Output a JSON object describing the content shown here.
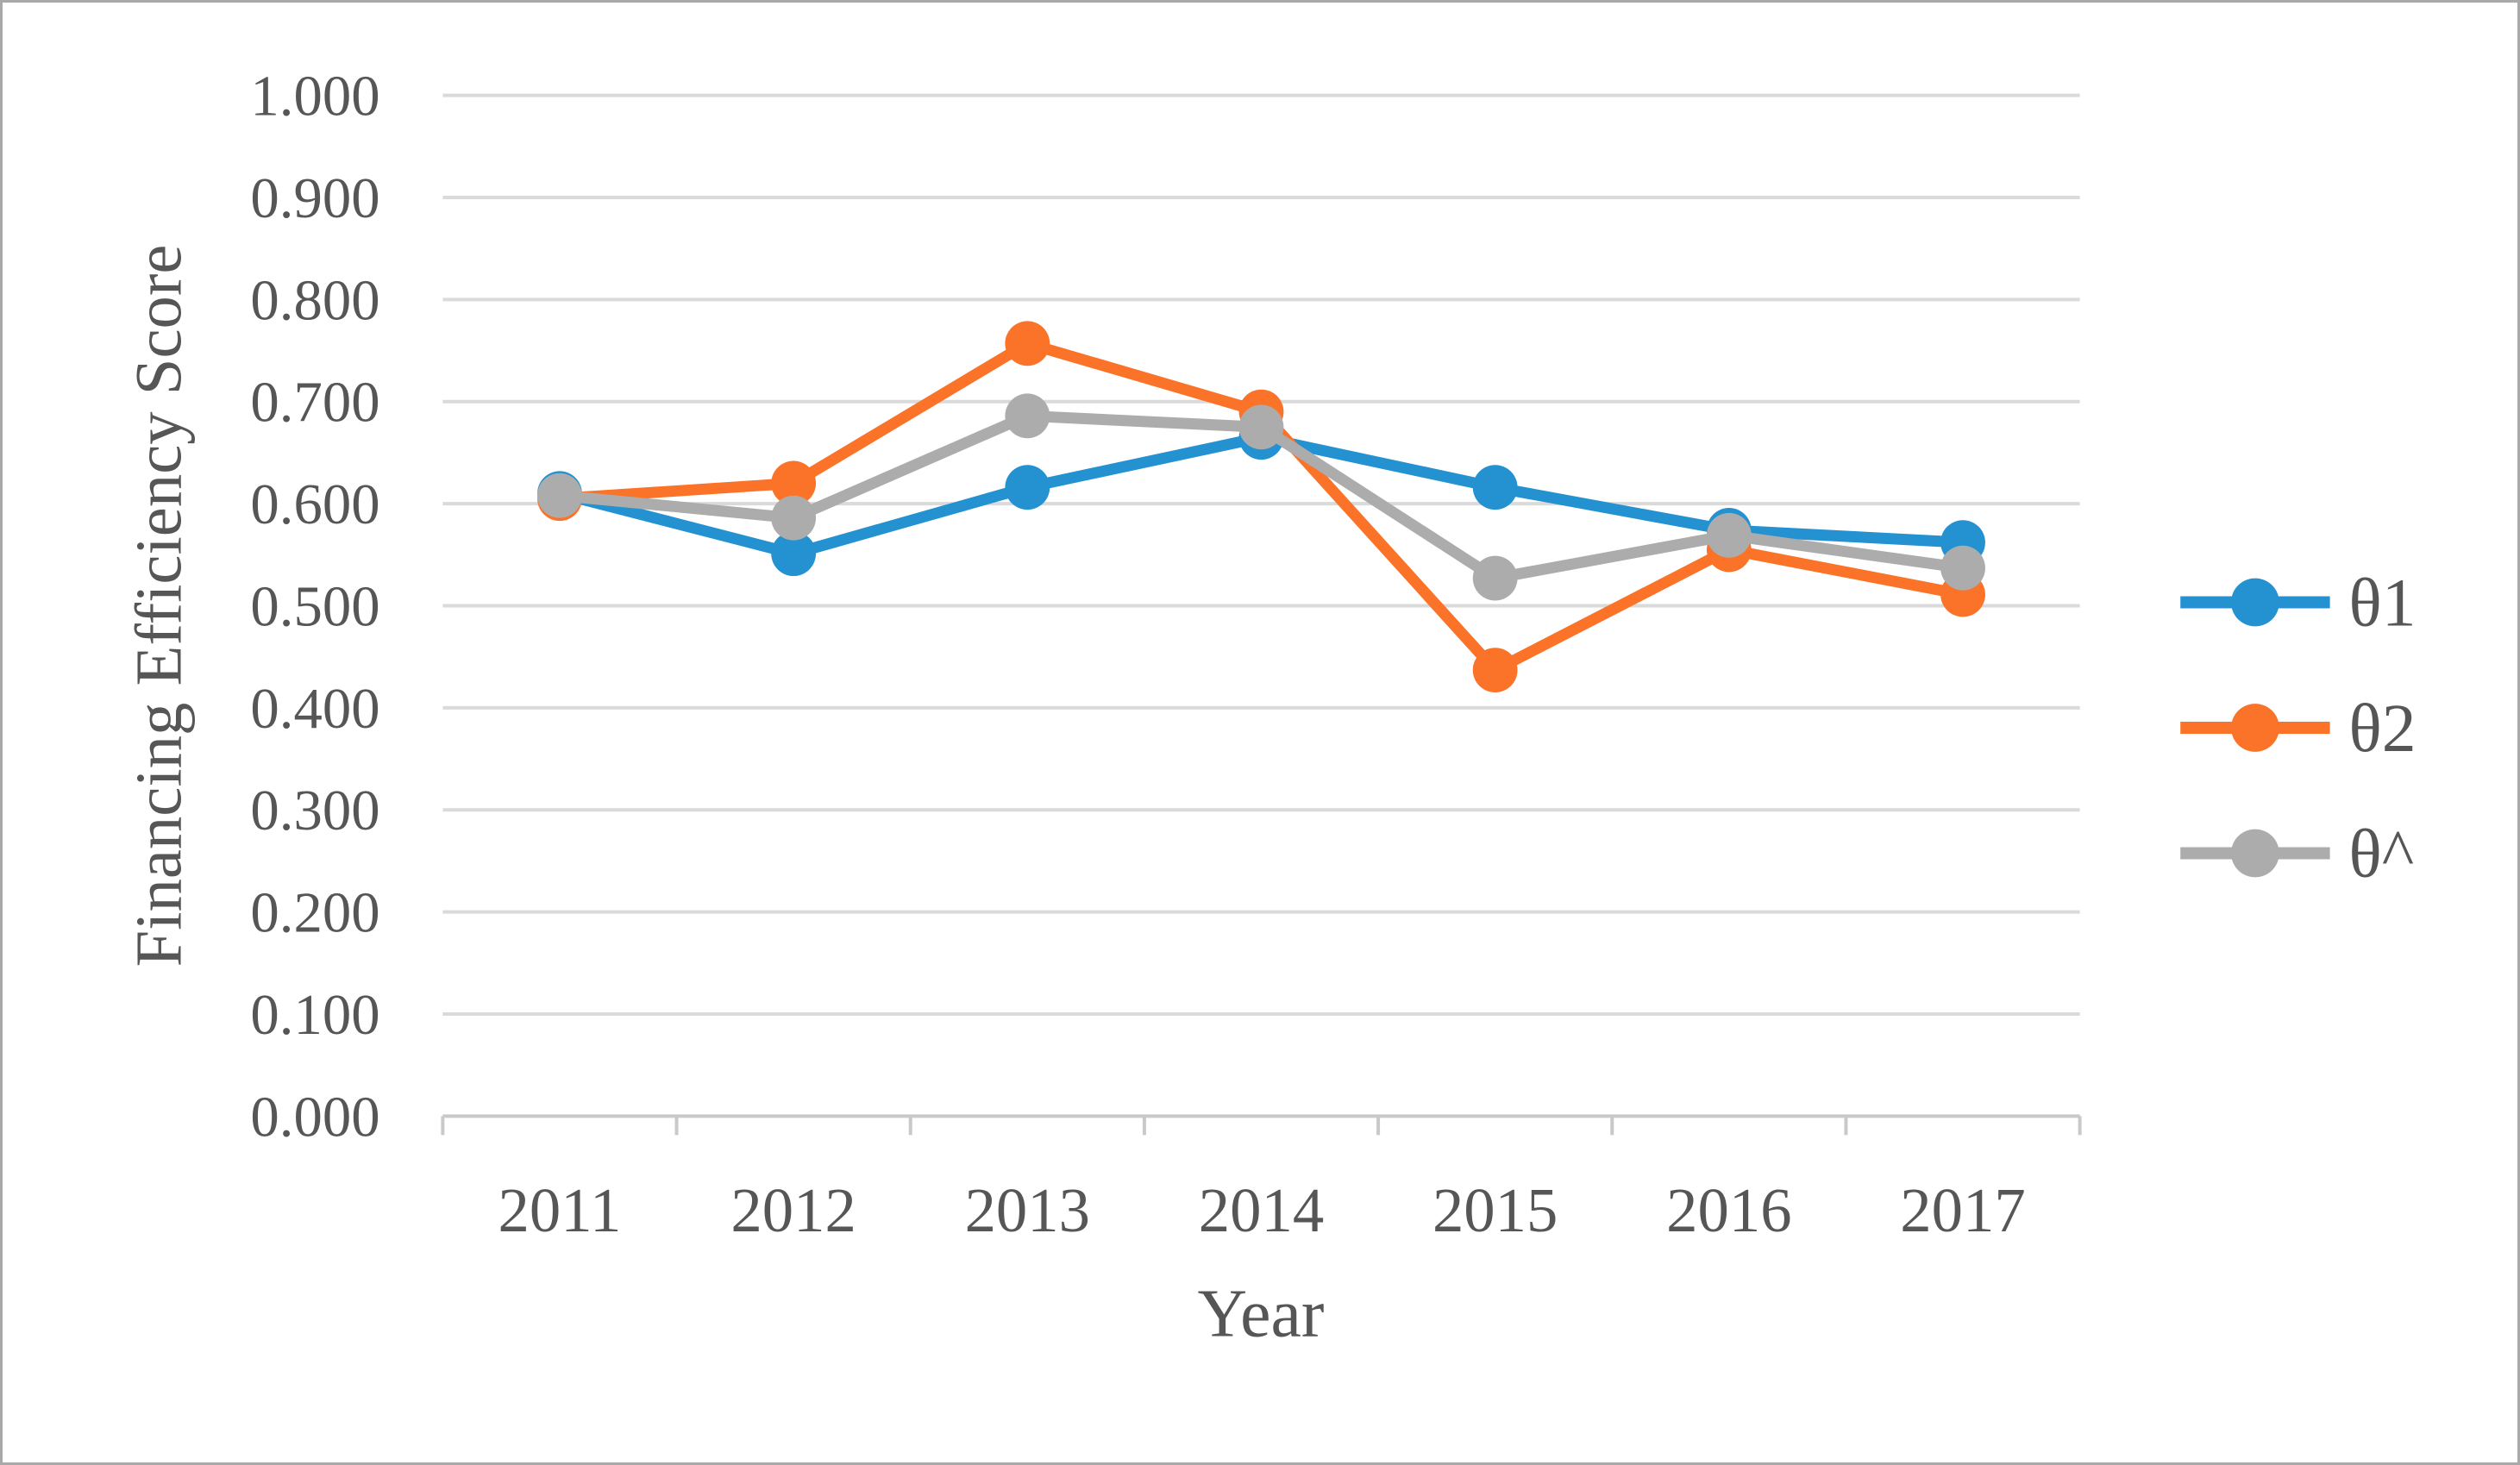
{
  "figure": {
    "border_color": "#a9a9a9",
    "background_color": "#ffffff"
  },
  "palette": {
    "gridline": "#dadada",
    "axis_line": "#c9c9c9",
    "tick_text": "#565656",
    "title_text": "#565656"
  },
  "chart_data": {
    "type": "line",
    "title": "",
    "xlabel": "Year",
    "ylabel": "Financing Efficiency Score",
    "categories": [
      "2011",
      "2012",
      "2013",
      "2014",
      "2015",
      "2016",
      "2017"
    ],
    "ylim": [
      0.0,
      1.0
    ],
    "y_tick_step": 0.1,
    "y_tick_labels": [
      "0.000",
      "0.100",
      "0.200",
      "0.300",
      "0.400",
      "0.500",
      "0.600",
      "0.700",
      "0.800",
      "0.900",
      "1.000"
    ],
    "grid": true,
    "legend_position": "right",
    "marker": "circle",
    "series": [
      {
        "id": "theta1",
        "name": "θ1",
        "color": "#2491d0",
        "values": [
          0.61,
          0.551,
          0.616,
          0.665,
          0.616,
          0.574,
          0.562
        ]
      },
      {
        "id": "theta2",
        "name": "θ2",
        "color": "#fa7328",
        "values": [
          0.605,
          0.62,
          0.757,
          0.69,
          0.437,
          0.555,
          0.511
        ]
      },
      {
        "id": "theta-hat",
        "name": "θ^",
        "color": "#acacac",
        "values": [
          0.608,
          0.586,
          0.686,
          0.675,
          0.527,
          0.569,
          0.537
        ]
      }
    ]
  }
}
